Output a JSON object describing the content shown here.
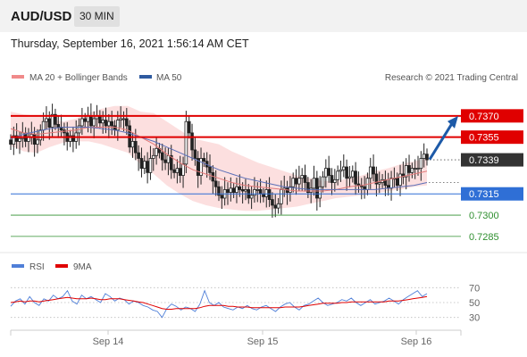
{
  "header": {
    "symbol": "AUD/USD",
    "timeframe": "30 MIN",
    "datetime": "Thursday, September 16, 2021 1:56:14 AM CET"
  },
  "legend": {
    "ma20": "MA 20 + Bollinger Bands",
    "ma50": "MA 50",
    "credit": "Research © 2021 Trading Central"
  },
  "colors": {
    "bollinger_fill": "#fbd9d9",
    "ma20_line": "#e27a7a",
    "ma50_line": "#5b6fb8",
    "resistance": "#e00000",
    "support": "#2f6fd6",
    "target_green": "#2f8f2f",
    "current_price_bg": "#333333",
    "arrow": "#1d5aa8",
    "candle": "#222222",
    "rsi_line": "#4f7fd8",
    "rsi_ma": "#e00000"
  },
  "chart_data": [
    {
      "type": "candlestick",
      "x_labels": [
        "Sep 14",
        "Sep 15",
        "Sep 16"
      ],
      "ylim": [
        0.7278,
        0.7385
      ],
      "current_price": "0.7339",
      "levels": [
        {
          "value": 0.737,
          "label": "0.7370",
          "kind": "resistance"
        },
        {
          "value": 0.7355,
          "label": "0.7355",
          "kind": "resistance"
        },
        {
          "value": 0.7315,
          "label": "0.7315",
          "kind": "support"
        },
        {
          "value": 0.73,
          "label": "0.7300",
          "kind": "target"
        },
        {
          "value": 0.7285,
          "label": "0.7285",
          "kind": "target"
        }
      ],
      "close": [
        0.735,
        0.7356,
        0.7352,
        0.7354,
        0.7358,
        0.7352,
        0.7355,
        0.7357,
        0.735,
        0.7353,
        0.736,
        0.7366,
        0.7368,
        0.7362,
        0.7371,
        0.7364,
        0.7362,
        0.736,
        0.7358,
        0.7352,
        0.7356,
        0.7352,
        0.7358,
        0.7363,
        0.7368,
        0.7366,
        0.737,
        0.7363,
        0.7368,
        0.737,
        0.7365,
        0.7367,
        0.7363,
        0.7366,
        0.7363,
        0.736,
        0.7367,
        0.7368,
        0.7368,
        0.7363,
        0.7348,
        0.7352,
        0.7344,
        0.734,
        0.7333,
        0.7338,
        0.733,
        0.734,
        0.7342,
        0.7347,
        0.7344,
        0.7339,
        0.7337,
        0.7342,
        0.7332,
        0.733,
        0.7333,
        0.7328,
        0.7336,
        0.7366,
        0.7358,
        0.7346,
        0.734,
        0.7328,
        0.734,
        0.7338,
        0.7334,
        0.733,
        0.7324,
        0.732,
        0.7314,
        0.7312,
        0.7318,
        0.7316,
        0.7319,
        0.7316,
        0.732,
        0.7318,
        0.7317,
        0.7318,
        0.7312,
        0.7314,
        0.7318,
        0.7318,
        0.7315,
        0.7313,
        0.7318,
        0.7311,
        0.7307,
        0.7305,
        0.7308,
        0.7318,
        0.7319,
        0.7316,
        0.732,
        0.7326,
        0.7322,
        0.7326,
        0.7328,
        0.7323,
        0.7316,
        0.7319,
        0.7326,
        0.7312,
        0.732,
        0.7327,
        0.7333,
        0.7328,
        0.7323,
        0.7325,
        0.7331,
        0.7332,
        0.7334,
        0.7326,
        0.7327,
        0.7331,
        0.7322,
        0.7321,
        0.732,
        0.7318,
        0.7326,
        0.7334,
        0.7329,
        0.7322,
        0.7323,
        0.7325,
        0.7321,
        0.7319,
        0.7326,
        0.7326,
        0.7321,
        0.7329,
        0.7327,
        0.7335,
        0.733,
        0.7333,
        0.7333,
        0.7333,
        0.734,
        0.7343,
        0.7339
      ],
      "bollinger_upper": [
        0.7373,
        0.7371,
        0.737,
        0.7368,
        0.7366,
        0.7368,
        0.7372,
        0.7375,
        0.7377,
        0.7377,
        0.7373,
        0.7372,
        0.7366,
        0.736,
        0.7354,
        0.7352,
        0.735,
        0.7345,
        0.7341,
        0.7337,
        0.7334,
        0.7331,
        0.7328,
        0.7326,
        0.7324,
        0.7324,
        0.7326,
        0.7328,
        0.7331,
        0.7333,
        0.7336,
        0.7338,
        0.734
      ],
      "bollinger_lower": [
        0.7349,
        0.7345,
        0.7344,
        0.7348,
        0.7351,
        0.7352,
        0.7352,
        0.735,
        0.7347,
        0.7344,
        0.7336,
        0.7329,
        0.7321,
        0.7315,
        0.731,
        0.7307,
        0.7305,
        0.7304,
        0.7303,
        0.7303,
        0.7304,
        0.7305,
        0.7306,
        0.7308,
        0.731,
        0.7312,
        0.7313,
        0.7314,
        0.7315,
        0.7317,
        0.7318,
        0.732,
        0.7321
      ],
      "ma20": [
        0.7361,
        0.7358,
        0.7357,
        0.7358,
        0.7359,
        0.736,
        0.7362,
        0.7362,
        0.7362,
        0.736,
        0.7355,
        0.735,
        0.7343,
        0.7337,
        0.7332,
        0.7329,
        0.7326,
        0.7323,
        0.7321,
        0.732,
        0.7319,
        0.7318,
        0.7317,
        0.7317,
        0.7317,
        0.7318,
        0.732,
        0.7321,
        0.7323,
        0.7325,
        0.7327,
        0.7329,
        0.7331
      ],
      "ma50": [
        0.7354,
        0.7357,
        0.7359,
        0.7361,
        0.7362,
        0.7362,
        0.7362,
        0.7361,
        0.736,
        0.7358,
        0.7355,
        0.7352,
        0.7348,
        0.7344,
        0.734,
        0.7336,
        0.7332,
        0.7329,
        0.7326,
        0.7324,
        0.7322,
        0.732,
        0.7319,
        0.7318,
        0.7318,
        0.7318,
        0.7318,
        0.7318,
        0.7318,
        0.7319,
        0.732,
        0.7321,
        0.7323
      ],
      "arrow": {
        "from": 0.7338,
        "to": 0.737
      }
    },
    {
      "type": "line",
      "legend": [
        "RSI",
        "9MA"
      ],
      "ylim": [
        20,
        80
      ],
      "ticks": [
        "70",
        "50",
        "30"
      ],
      "tick_values": [
        70,
        50,
        30
      ],
      "rsi": [
        45,
        52,
        55,
        48,
        58,
        50,
        46,
        55,
        52,
        60,
        55,
        58,
        66,
        52,
        48,
        60,
        55,
        58,
        54,
        50,
        62,
        58,
        52,
        56,
        54,
        48,
        52,
        50,
        46,
        44,
        40,
        38,
        30,
        42,
        48,
        45,
        40,
        44,
        42,
        38,
        48,
        66,
        50,
        46,
        50,
        44,
        42,
        40,
        44,
        42,
        46,
        42,
        40,
        44,
        46,
        42,
        38,
        44,
        48,
        50,
        44,
        40,
        46,
        48,
        52,
        56,
        50,
        46,
        48,
        50,
        54,
        52,
        56,
        50,
        46,
        50,
        54,
        48,
        50,
        52,
        56,
        52,
        48,
        54,
        58,
        62,
        66,
        58,
        62
      ],
      "ma9": [
        50,
        51,
        52,
        51,
        52,
        52,
        51,
        52,
        53,
        54,
        55,
        56,
        57,
        56,
        55,
        55,
        55,
        56,
        55,
        54,
        54,
        55,
        55,
        55,
        54,
        53,
        52,
        51,
        50,
        48,
        46,
        44,
        42,
        41,
        41,
        42,
        42,
        42,
        42,
        42,
        43,
        45,
        46,
        46,
        46,
        46,
        45,
        45,
        44,
        44,
        44,
        43,
        43,
        43,
        43,
        43,
        43,
        43,
        44,
        44,
        44,
        44,
        45,
        46,
        47,
        48,
        49,
        49,
        49,
        49,
        50,
        50,
        51,
        51,
        51,
        51,
        51,
        51,
        51,
        51,
        52,
        52,
        52,
        53,
        54,
        55,
        56,
        57,
        58
      ]
    }
  ]
}
